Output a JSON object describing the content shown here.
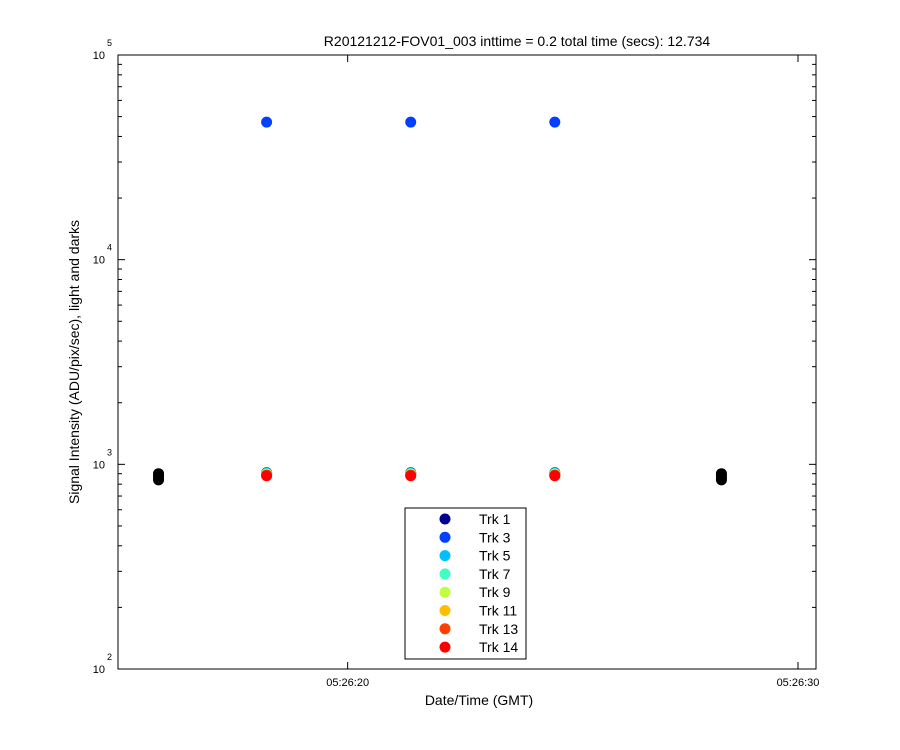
{
  "chart_data": {
    "type": "scatter",
    "title": "R20121212-FOV01_003 inttime = 0.2 total time (secs): 12.734",
    "xlabel": "Date/Time (GMT)",
    "ylabel": "Signal Intensity (ADU/pix/sec), light and darks",
    "yscale": "log",
    "ylim": [
      100,
      100000
    ],
    "y_ticks": [
      {
        "mantissa": "10",
        "exponent": "2",
        "value": 100
      },
      {
        "mantissa": "10",
        "exponent": "3",
        "value": 1000
      },
      {
        "mantissa": "10",
        "exponent": "4",
        "value": 10000
      },
      {
        "mantissa": "10",
        "exponent": "5",
        "value": 100000
      }
    ],
    "xlim": [
      "05:26:14.9",
      "05:26:30.4"
    ],
    "x_ticks": [
      "05:26:20",
      "05:26:30"
    ],
    "grid": false,
    "legend_position": "bottom-center",
    "light_x": [
      "05:26:18.2",
      "05:26:21.4",
      "05:26:24.6"
    ],
    "dark_x": [
      "05:26:15.8",
      "05:26:28.3"
    ],
    "dark_values": [
      840,
      860,
      880,
      900
    ],
    "dark_color": "#000000",
    "series": [
      {
        "name": "Trk 1",
        "color": "#00008f",
        "values": [
          910,
          910,
          910
        ]
      },
      {
        "name": "Trk 3",
        "color": "#0040ff",
        "values": [
          47000,
          47000,
          47000
        ]
      },
      {
        "name": "Trk 5",
        "color": "#00bfff",
        "values": [
          905,
          905,
          905
        ]
      },
      {
        "name": "Trk 7",
        "color": "#40ffbf",
        "values": [
          900,
          900,
          900
        ]
      },
      {
        "name": "Trk 9",
        "color": "#bfff40",
        "values": [
          895,
          895,
          895
        ]
      },
      {
        "name": "Trk 11",
        "color": "#ffbf00",
        "values": [
          890,
          890,
          890
        ]
      },
      {
        "name": "Trk 13",
        "color": "#ff4000",
        "values": [
          885,
          885,
          885
        ]
      },
      {
        "name": "Trk 14",
        "color": "#ff0000",
        "values": [
          880,
          880,
          880
        ]
      }
    ]
  }
}
